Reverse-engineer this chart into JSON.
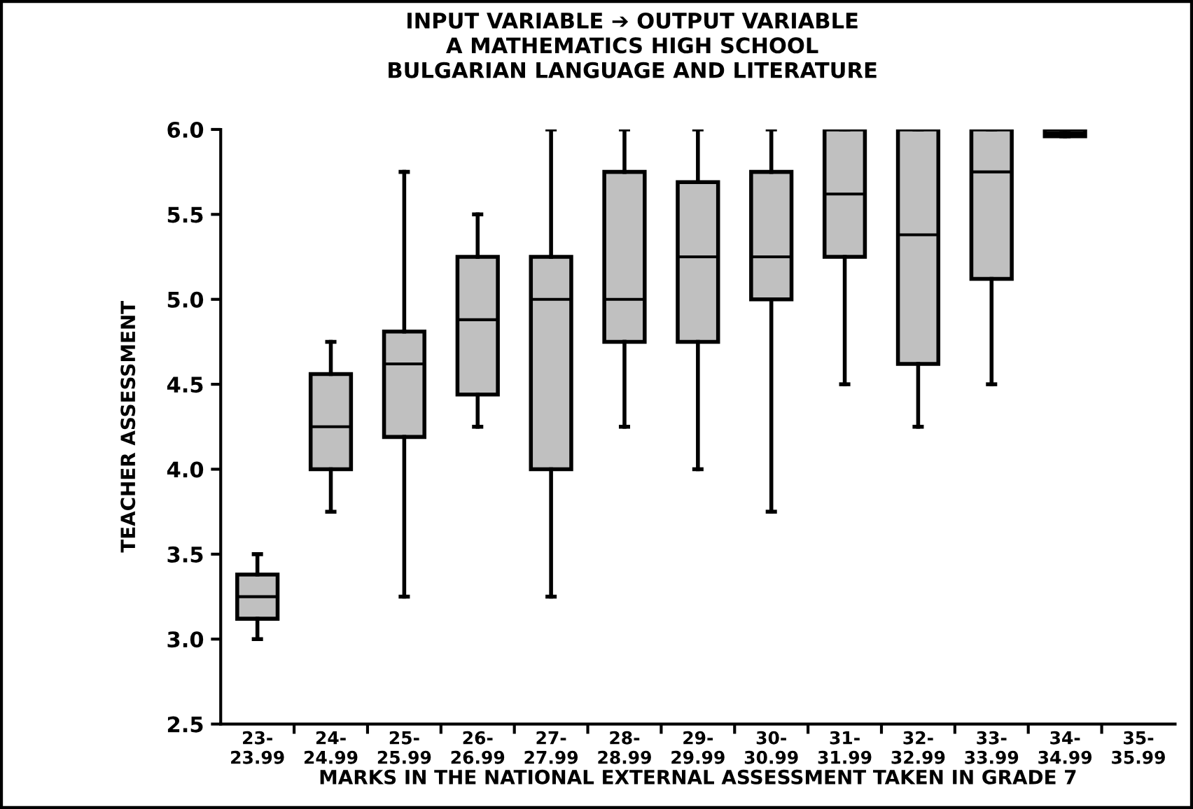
{
  "chart_data": {
    "type": "box",
    "title": "INPUT VARIABLE ➔ OUTPUT VARIABLE\nA MATHEMATICS HIGH SCHOOL\nBULGARIAN LANGUAGE AND LITERATURE",
    "xlabel": "MARKS IN THE NATIONAL EXTERNAL ASSESSMENT TAKEN IN GRADE 7",
    "ylabel": "TEACHER ASSESSMENT",
    "categories": [
      "23-\n23.99",
      "24-\n24.99",
      "25-\n25.99",
      "26-\n26.99",
      "27-\n27.99",
      "28-\n28.99",
      "29-\n29.99",
      "30-\n30.99",
      "31-\n31.99",
      "32-\n32.99",
      "33-\n33.99",
      "34-\n34.99",
      "35-\n35.99"
    ],
    "series": [
      {
        "color": "#c0c0c0",
        "boxes": [
          {
            "low": 3.0,
            "q1": 3.12,
            "median": 3.25,
            "q3": 3.38,
            "high": 3.5
          },
          {
            "low": 3.75,
            "q1": 4.0,
            "median": 4.25,
            "q3": 4.56,
            "high": 4.75
          },
          {
            "low": 3.25,
            "q1": 4.19,
            "median": 4.62,
            "q3": 4.81,
            "high": 5.75
          },
          {
            "low": 4.25,
            "q1": 4.44,
            "median": 4.88,
            "q3": 5.25,
            "high": 5.5
          },
          {
            "low": 3.25,
            "q1": 4.0,
            "median": 5.0,
            "q3": 5.25,
            "high": 6.0
          },
          {
            "low": 4.25,
            "q1": 4.75,
            "median": 5.0,
            "q3": 5.75,
            "high": 6.0
          },
          {
            "low": 4.0,
            "q1": 4.75,
            "median": 5.25,
            "q3": 5.69,
            "high": 6.0
          },
          {
            "low": 3.75,
            "q1": 5.0,
            "median": 5.25,
            "q3": 5.75,
            "high": 6.0
          },
          {
            "low": 4.5,
            "q1": 5.25,
            "median": 5.62,
            "q3": 6.0,
            "high": 6.0
          },
          {
            "low": 4.25,
            "q1": 4.62,
            "median": 5.38,
            "q3": 6.0,
            "high": 6.0
          },
          {
            "low": 4.5,
            "q1": 5.12,
            "median": 5.75,
            "q3": 6.0,
            "high": 6.0
          },
          {
            "low": 5.96,
            "q1": 5.96,
            "median": 5.98,
            "q3": 6.0,
            "high": 6.0
          },
          null
        ]
      }
    ],
    "ylim": [
      2.5,
      6.0
    ],
    "yticks": [
      {
        "value": 2.5,
        "label": "2.5"
      },
      {
        "value": 3.0,
        "label": "3.0"
      },
      {
        "value": 3.5,
        "label": "3.5"
      },
      {
        "value": 4.0,
        "label": "4.0"
      },
      {
        "value": 4.5,
        "label": "4.5"
      },
      {
        "value": 5.0,
        "label": "5.0"
      },
      {
        "value": 5.5,
        "label": "5.5"
      },
      {
        "value": 6.0,
        "label": "6.0"
      }
    ],
    "grid": false,
    "legend": false
  }
}
